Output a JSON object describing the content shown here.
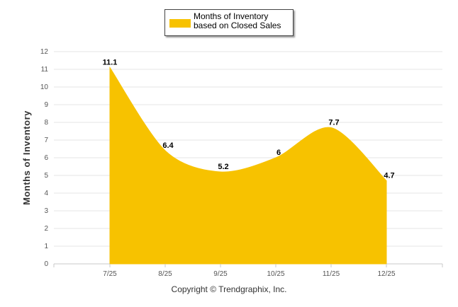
{
  "legend": {
    "label": "Months of Inventory based on Closed Sales"
  },
  "footer": {
    "copyright": "Copyright © Trendgraphix, Inc."
  },
  "colors": {
    "fill": "#f7c200",
    "grid": "#e6e6e6"
  },
  "chart_data": {
    "type": "area",
    "categories": [
      "7/25",
      "8/25",
      "9/25",
      "10/25",
      "11/25",
      "12/25"
    ],
    "series": [
      {
        "name": "Months of Inventory based on Closed Sales",
        "values": [
          11.1,
          6.4,
          5.2,
          6,
          7.7,
          4.7
        ]
      }
    ],
    "ylabel": "Months of Inventory",
    "ylim": [
      0,
      12
    ],
    "yticks": [
      0,
      1,
      2,
      3,
      4,
      5,
      6,
      7,
      8,
      9,
      10,
      11,
      12
    ],
    "grid": true,
    "legend_position": "top-center"
  }
}
